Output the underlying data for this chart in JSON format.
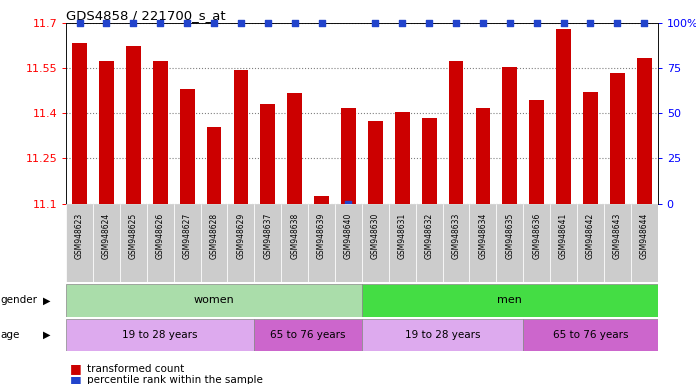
{
  "title": "GDS4858 / 221700_s_at",
  "samples": [
    "GSM948623",
    "GSM948624",
    "GSM948625",
    "GSM948626",
    "GSM948627",
    "GSM948628",
    "GSM948629",
    "GSM948637",
    "GSM948638",
    "GSM948639",
    "GSM948640",
    "GSM948630",
    "GSM948631",
    "GSM948632",
    "GSM948633",
    "GSM948634",
    "GSM948635",
    "GSM948636",
    "GSM948641",
    "GSM948642",
    "GSM948643",
    "GSM948644"
  ],
  "transformed_count": [
    11.635,
    11.573,
    11.625,
    11.573,
    11.48,
    11.355,
    11.543,
    11.432,
    11.468,
    11.125,
    11.418,
    11.375,
    11.403,
    11.385,
    11.573,
    11.418,
    11.553,
    11.443,
    11.68,
    11.47,
    11.535,
    11.583
  ],
  "percentile": [
    100,
    100,
    100,
    100,
    100,
    100,
    100,
    100,
    100,
    100,
    0,
    100,
    100,
    100,
    100,
    100,
    100,
    100,
    100,
    100,
    100,
    100
  ],
  "ylim_left": [
    11.1,
    11.7
  ],
  "ylim_right": [
    0,
    100
  ],
  "yticks_left": [
    11.1,
    11.25,
    11.4,
    11.55,
    11.7
  ],
  "yticks_right": [
    0,
    25,
    50,
    75,
    100
  ],
  "bar_color": "#cc0000",
  "dot_color": "#2244cc",
  "tick_bg_color": "#cccccc",
  "gender_groups": [
    {
      "label": "women",
      "start": 0,
      "end": 11,
      "color": "#aaddaa"
    },
    {
      "label": "men",
      "start": 11,
      "end": 22,
      "color": "#44dd44"
    }
  ],
  "age_groups": [
    {
      "label": "19 to 28 years",
      "start": 0,
      "end": 7,
      "color": "#ddaaee"
    },
    {
      "label": "65 to 76 years",
      "start": 7,
      "end": 11,
      "color": "#cc66cc"
    },
    {
      "label": "19 to 28 years",
      "start": 11,
      "end": 17,
      "color": "#ddaaee"
    },
    {
      "label": "65 to 76 years",
      "start": 17,
      "end": 22,
      "color": "#cc66cc"
    }
  ],
  "legend_bar_label": "transformed count",
  "legend_dot_label": "percentile rank within the sample"
}
